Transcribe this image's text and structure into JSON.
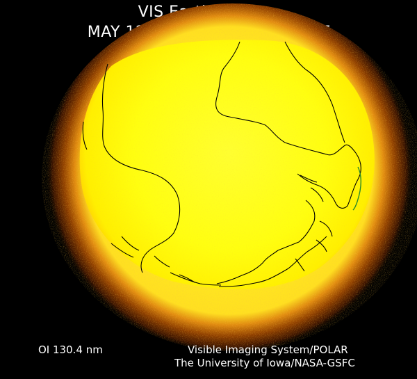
{
  "header": {
    "title": "VIS Earth Camera",
    "timestamp": "MAY 12, 2000/133 1149:32 UT"
  },
  "footer": {
    "filter": "OI  130.4 nm",
    "instrument": "Visible Imaging System/POLAR",
    "institution": "The University of Iowa/NASA-GSFC"
  },
  "colors": {
    "background": "#000000",
    "disk_core": "#ffff20",
    "disk_mid": "#ffd020",
    "limb_glow": "#b05000",
    "coastline": "#000000",
    "auroral_trace": "#2a8a2a"
  }
}
